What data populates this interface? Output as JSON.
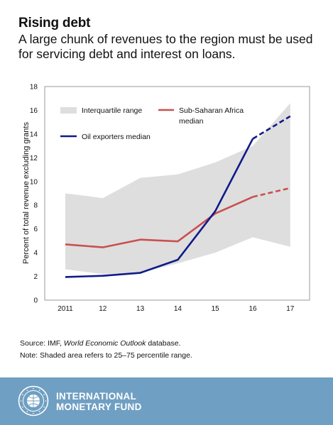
{
  "header": {
    "title": "Rising debt",
    "subtitle": "A large chunk of revenues to the region must be used for servicing debt and interest on loans."
  },
  "chart_data": {
    "type": "line",
    "categories": [
      "2011",
      "12",
      "13",
      "14",
      "15",
      "16",
      "17"
    ],
    "ylabel": "Percent of total revenue excluding grants",
    "ylim": [
      0,
      18
    ],
    "yticks": [
      0,
      2,
      4,
      6,
      8,
      10,
      12,
      14,
      16,
      18
    ],
    "projection_start_index": 5,
    "band": {
      "name": "Interquartile range",
      "color": "#dedede",
      "upper": [
        9.0,
        8.6,
        10.3,
        10.6,
        11.6,
        13.0,
        16.6
      ],
      "lower": [
        2.6,
        2.2,
        2.3,
        3.1,
        4.0,
        5.3,
        4.5
      ]
    },
    "series": [
      {
        "name": "Sub-Saharan Africa median",
        "color": "#c9504f",
        "values": [
          4.7,
          4.45,
          5.1,
          4.95,
          7.3,
          8.7,
          9.45
        ]
      },
      {
        "name": "Oil exporters median",
        "color": "#0f1a8a",
        "values": [
          1.95,
          2.05,
          2.3,
          3.4,
          7.5,
          13.6,
          15.5
        ]
      }
    ],
    "legend": {
      "band_label": "Interquartile range",
      "ssa_label_line1": "Sub-Saharan Africa",
      "ssa_label_line2": "median",
      "oil_label": "Oil exporters median"
    },
    "grid": false
  },
  "notes": {
    "source_prefix": "Source: IMF, ",
    "source_italic": "World Economic Outlook",
    "source_suffix": " database.",
    "note": "Note: Shaded area refers to 25–75 percentile range."
  },
  "footer": {
    "org_line1": "INTERNATIONAL",
    "org_line2": "MONETARY FUND",
    "logo": "imf-seal-logo",
    "background_color": "#6f9fc2"
  }
}
